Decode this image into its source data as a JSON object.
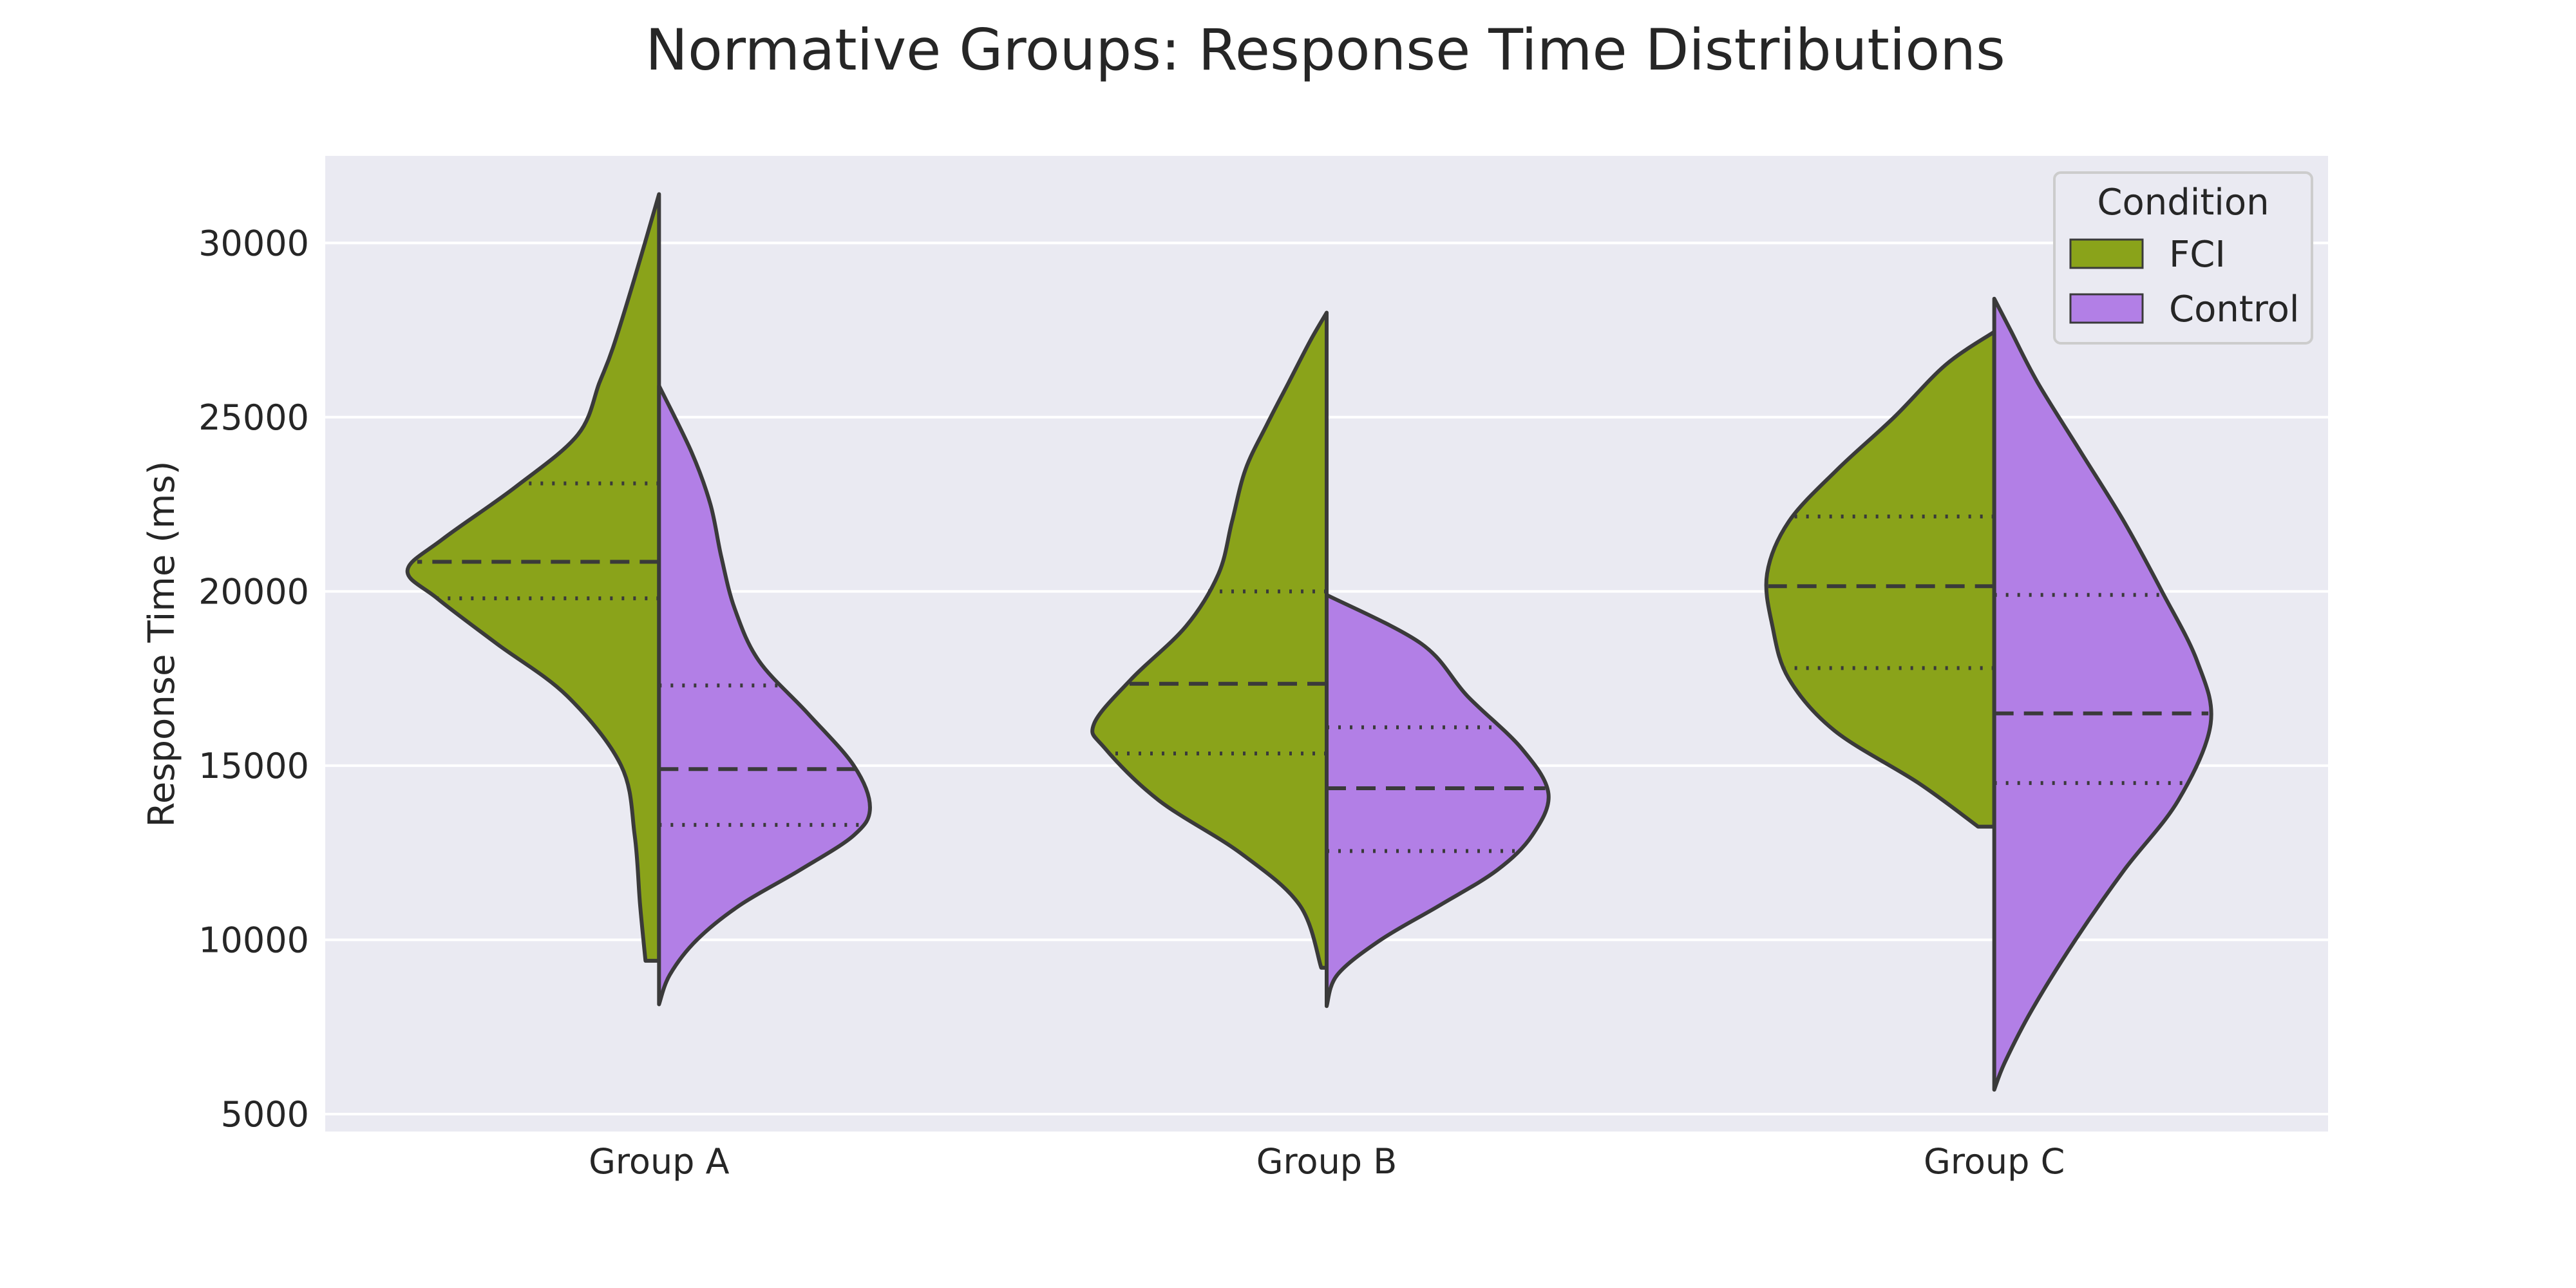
{
  "chart_data": {
    "type": "violin",
    "title": "Normative Groups: Response Time Distributions",
    "xlabel": "",
    "ylabel": "Response Time (ms)",
    "ylim": [
      4500,
      32500
    ],
    "yticks": [
      5000,
      10000,
      15000,
      20000,
      25000,
      30000
    ],
    "categories": [
      "Group A",
      "Group B",
      "Group C"
    ],
    "grid": true,
    "legend": {
      "title": "Condition",
      "position": "top-right"
    },
    "colors": {
      "FCI": "#8aa31a",
      "Control": "#b27fe6",
      "background": "#eaeaf2",
      "outline": "#3a3a3a"
    },
    "series": [
      {
        "name": "FCI",
        "groups": [
          {
            "category": "Group A",
            "min": 9400,
            "max": 31400,
            "q1": 19800,
            "median": 20850,
            "q3": 23100,
            "profile": [
              [
                9400,
                0.05
              ],
              [
                11000,
                0.07
              ],
              [
                13000,
                0.09
              ],
              [
                15000,
                0.14
              ],
              [
                17000,
                0.34
              ],
              [
                18500,
                0.6
              ],
              [
                19800,
                0.82
              ],
              [
                20600,
                0.93
              ],
              [
                21500,
                0.8
              ],
              [
                23000,
                0.53
              ],
              [
                24500,
                0.3
              ],
              [
                26000,
                0.22
              ],
              [
                27000,
                0.17
              ],
              [
                29000,
                0.09
              ],
              [
                31400,
                0.0
              ]
            ]
          },
          {
            "category": "Group B",
            "min": 9200,
            "max": 28000,
            "q1": 15350,
            "median": 17350,
            "q3": 20000,
            "profile": [
              [
                9200,
                0.02
              ],
              [
                11000,
                0.1
              ],
              [
                12500,
                0.32
              ],
              [
                14000,
                0.62
              ],
              [
                15500,
                0.82
              ],
              [
                16200,
                0.86
              ],
              [
                17500,
                0.72
              ],
              [
                19000,
                0.52
              ],
              [
                20500,
                0.4
              ],
              [
                22000,
                0.35
              ],
              [
                23500,
                0.3
              ],
              [
                24800,
                0.22
              ],
              [
                26000,
                0.14
              ],
              [
                27200,
                0.06
              ],
              [
                28000,
                0.0
              ]
            ]
          },
          {
            "category": "Group C",
            "min": 13250,
            "max": 27450,
            "q1": 17800,
            "median": 20150,
            "q3": 22150,
            "profile": [
              [
                13250,
                0.06
              ],
              [
                14500,
                0.28
              ],
              [
                16000,
                0.59
              ],
              [
                17500,
                0.76
              ],
              [
                19000,
                0.82
              ],
              [
                20500,
                0.84
              ],
              [
                22000,
                0.76
              ],
              [
                23500,
                0.58
              ],
              [
                25000,
                0.37
              ],
              [
                26500,
                0.18
              ],
              [
                27450,
                0.0
              ]
            ]
          }
        ]
      },
      {
        "name": "Control",
        "groups": [
          {
            "category": "Group A",
            "min": 8150,
            "max": 25900,
            "q1": 13300,
            "median": 14900,
            "q3": 17300,
            "profile": [
              [
                8150,
                0.0
              ],
              [
                9000,
                0.04
              ],
              [
                10000,
                0.14
              ],
              [
                11000,
                0.3
              ],
              [
                12000,
                0.52
              ],
              [
                13000,
                0.72
              ],
              [
                13800,
                0.78
              ],
              [
                15000,
                0.72
              ],
              [
                16500,
                0.55
              ],
              [
                18000,
                0.37
              ],
              [
                19500,
                0.28
              ],
              [
                21000,
                0.23
              ],
              [
                22500,
                0.19
              ],
              [
                24000,
                0.12
              ],
              [
                25900,
                0.0
              ]
            ]
          },
          {
            "category": "Group B",
            "min": 8100,
            "max": 19900,
            "q1": 12550,
            "median": 14350,
            "q3": 16100,
            "profile": [
              [
                8100,
                0.0
              ],
              [
                9000,
                0.04
              ],
              [
                10000,
                0.2
              ],
              [
                11000,
                0.42
              ],
              [
                12000,
                0.63
              ],
              [
                13000,
                0.76
              ],
              [
                14200,
                0.82
              ],
              [
                15500,
                0.72
              ],
              [
                17000,
                0.52
              ],
              [
                18500,
                0.35
              ],
              [
                19900,
                0.0
              ]
            ]
          },
          {
            "category": "Group C",
            "min": 5700,
            "max": 28400,
            "q1": 14500,
            "median": 16500,
            "q3": 19900,
            "profile": [
              [
                5700,
                0.0
              ],
              [
                6500,
                0.04
              ],
              [
                8000,
                0.14
              ],
              [
                10000,
                0.3
              ],
              [
                12000,
                0.48
              ],
              [
                14000,
                0.68
              ],
              [
                16200,
                0.8
              ],
              [
                18000,
                0.75
              ],
              [
                20000,
                0.62
              ],
              [
                22000,
                0.48
              ],
              [
                24000,
                0.32
              ],
              [
                26000,
                0.16
              ],
              [
                27500,
                0.06
              ],
              [
                28400,
                0.0
              ]
            ]
          }
        ]
      }
    ]
  }
}
